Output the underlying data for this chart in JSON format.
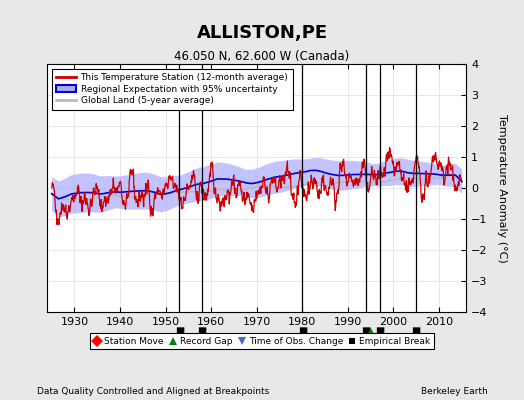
{
  "title": "ALLISTON,PE",
  "subtitle": "46.050 N, 62.600 W (Canada)",
  "ylabel": "Temperature Anomaly (°C)",
  "footer_left": "Data Quality Controlled and Aligned at Breakpoints",
  "footer_right": "Berkeley Earth",
  "xlim": [
    1924,
    2016
  ],
  "ylim": [
    -4,
    4
  ],
  "yticks": [
    -4,
    -3,
    -2,
    -1,
    0,
    1,
    2,
    3,
    4
  ],
  "xticks": [
    1930,
    1940,
    1950,
    1960,
    1970,
    1980,
    1990,
    2000,
    2010
  ],
  "background_color": "#e8e8e8",
  "plot_bg_color": "#ffffff",
  "uncertainty_color": "#aaaaff",
  "uncertainty_alpha": 0.7,
  "regional_line_color": "#0000cc",
  "station_line_color": "#cc0000",
  "global_line_color": "#bbbbbb",
  "empirical_breaks": [
    1953,
    1958,
    1980,
    1994,
    1997,
    2005
  ],
  "record_gaps": [
    1995
  ],
  "station_moves": [],
  "tobs_changes": [],
  "seed": 42
}
